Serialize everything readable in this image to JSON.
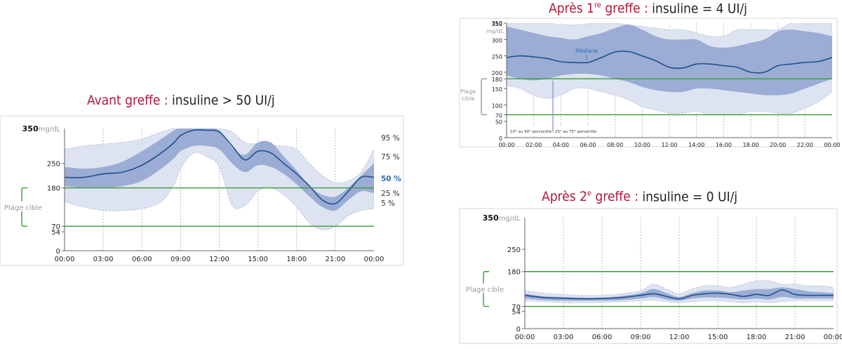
{
  "charts": [
    {
      "id": "chart-a",
      "title_red": "Avant greffe :",
      "title_rest": "insuline > 50 UI/j",
      "sup": "",
      "title_red_after": "",
      "unit": "mg/dL",
      "y_top_label": "350",
      "target_label": "Plage cible",
      "y_ticks": [
        0,
        54,
        70,
        180,
        250
      ],
      "x_ticks": [
        "00:00",
        "03:00",
        "06:00",
        "09:00",
        "12:00",
        "15:00",
        "18:00",
        "21:00",
        "00:00"
      ],
      "percentile_labels": [
        {
          "text": "95 %",
          "value": 95
        },
        {
          "text": "75 %",
          "value": 75
        },
        {
          "text": "50 %",
          "value": 50
        },
        {
          "text": "25 %",
          "value": 25
        },
        {
          "text": "5 %",
          "value": 5
        }
      ]
    },
    {
      "id": "chart-b",
      "title_red": "Après 1",
      "sup": "re",
      "title_red_after": " greffe :",
      "title_rest": "insuline = 4 UI/j",
      "unit": "mg/dL",
      "y_top_label": "350",
      "target_label": "Plage cible",
      "y_ticks": [
        0,
        50,
        70,
        100,
        150,
        180,
        200,
        250,
        300,
        350
      ],
      "x_ticks": [
        "00:00",
        "02:00",
        "04:00",
        "06:00",
        "08:00",
        "10:00",
        "12:00",
        "14:00",
        "16:00",
        "18:00",
        "20:00",
        "22:00",
        "00:00"
      ],
      "median_label": "Médiane",
      "legend_10_90": "10° au 90° percentile",
      "legend_25_75": "25° au 75° percentile"
    },
    {
      "id": "chart-c",
      "title_red": "Après 2",
      "sup": "e",
      "title_red_after": " greffe :",
      "title_rest": "insuline = 0 UI/j",
      "unit": "mg/dL",
      "y_top_label": "350",
      "target_label": "Plage cible",
      "y_ticks": [
        0,
        54,
        70,
        180,
        250
      ],
      "x_ticks": [
        "00:00",
        "03:00",
        "06:00",
        "09:00",
        "12:00",
        "15:00",
        "18:00",
        "21:00",
        "00:00"
      ]
    }
  ],
  "colors": {
    "title_accent": "#b0173a",
    "outer_band": "#dde3f0",
    "inner_band": "#9badd4",
    "median": "#1f4f8f",
    "target_line": "#3a9a3a",
    "label_blue": "#2a6db5"
  },
  "chart_data": [
    {
      "type": "area",
      "title": "Avant greffe : insuline > 50 UI/j",
      "ylabel": "mg/dL",
      "ylim": [
        0,
        350
      ],
      "xlim": [
        0,
        24
      ],
      "target_range": [
        70,
        180
      ],
      "x": [
        0,
        1.5,
        3,
        4.5,
        6,
        7.5,
        8.5,
        9,
        10,
        11,
        12,
        13,
        14,
        15,
        16,
        17,
        18,
        19,
        20,
        21,
        22,
        23,
        24
      ],
      "series": [
        {
          "name": "95 %",
          "values": [
            290,
            300,
            305,
            310,
            320,
            340,
            352,
            355,
            355,
            350,
            350,
            340,
            310,
            305,
            300,
            300,
            290,
            250,
            215,
            195,
            200,
            225,
            290
          ]
        },
        {
          "name": "75 %",
          "values": [
            240,
            235,
            240,
            255,
            285,
            320,
            345,
            355,
            355,
            350,
            345,
            295,
            275,
            310,
            310,
            270,
            230,
            185,
            160,
            155,
            180,
            215,
            250
          ]
        },
        {
          "name": "50 %",
          "values": [
            210,
            210,
            220,
            225,
            245,
            280,
            310,
            330,
            345,
            345,
            340,
            300,
            260,
            285,
            280,
            250,
            220,
            185,
            145,
            135,
            170,
            210,
            210
          ]
        },
        {
          "name": "25 %",
          "values": [
            185,
            180,
            180,
            185,
            200,
            235,
            265,
            285,
            300,
            300,
            290,
            250,
            225,
            245,
            240,
            220,
            190,
            155,
            125,
            115,
            145,
            170,
            165
          ]
        },
        {
          "name": "5 %",
          "values": [
            140,
            125,
            115,
            115,
            120,
            140,
            190,
            235,
            280,
            270,
            240,
            130,
            130,
            170,
            180,
            160,
            125,
            80,
            60,
            70,
            100,
            115,
            120
          ]
        }
      ]
    },
    {
      "type": "area",
      "title": "Après 1re greffe : insuline = 4 UI/j",
      "ylabel": "mg/dL",
      "ylim": [
        0,
        350
      ],
      "xlim": [
        0,
        24
      ],
      "target_range": [
        70,
        180
      ],
      "x": [
        0,
        1,
        2,
        3,
        4,
        5,
        6,
        7,
        8,
        9,
        10,
        11,
        12,
        13,
        14,
        15,
        16,
        17,
        18,
        19,
        20,
        21,
        22,
        23,
        24
      ],
      "series": [
        {
          "name": "90° percentile",
          "values": [
            350,
            350,
            350,
            350,
            345,
            345,
            348,
            350,
            350,
            345,
            340,
            335,
            330,
            330,
            320,
            310,
            310,
            330,
            330,
            330,
            330,
            350,
            350,
            350,
            350
          ]
        },
        {
          "name": "75° percentile",
          "values": [
            340,
            330,
            320,
            310,
            305,
            300,
            310,
            320,
            335,
            345,
            330,
            310,
            300,
            300,
            300,
            280,
            275,
            280,
            290,
            300,
            325,
            330,
            325,
            320,
            310
          ]
        },
        {
          "name": "Médiane",
          "values": [
            245,
            250,
            247,
            242,
            232,
            230,
            230,
            245,
            262,
            263,
            250,
            235,
            215,
            213,
            225,
            225,
            220,
            215,
            200,
            200,
            220,
            225,
            230,
            233,
            245
          ]
        },
        {
          "name": "25° percentile",
          "values": [
            190,
            180,
            175,
            180,
            190,
            195,
            195,
            190,
            180,
            170,
            155,
            145,
            140,
            140,
            150,
            150,
            145,
            140,
            135,
            130,
            130,
            135,
            150,
            165,
            180
          ]
        },
        {
          "name": "10° percentile",
          "values": [
            160,
            150,
            130,
            120,
            130,
            150,
            150,
            140,
            130,
            115,
            95,
            85,
            75,
            75,
            80,
            70,
            70,
            70,
            80,
            80,
            75,
            75,
            90,
            110,
            140
          ]
        }
      ]
    },
    {
      "type": "area",
      "title": "Après 2e greffe : insuline = 0 UI/j",
      "ylabel": "mg/dL",
      "ylim": [
        0,
        350
      ],
      "xlim": [
        0,
        24
      ],
      "target_range": [
        70,
        180
      ],
      "x": [
        0,
        1.5,
        3,
        4.5,
        6,
        7.5,
        9,
        10,
        11,
        12,
        13,
        14,
        15,
        16,
        17,
        18,
        19,
        20,
        21,
        22,
        23,
        24
      ],
      "series": [
        {
          "name": "95 %",
          "values": [
            120,
            112,
            108,
            105,
            105,
            110,
            120,
            140,
            125,
            110,
            125,
            135,
            135,
            130,
            140,
            150,
            150,
            140,
            140,
            135,
            135,
            130
          ]
        },
        {
          "name": "75 %",
          "values": [
            110,
            102,
            100,
            98,
            98,
            103,
            112,
            125,
            112,
            100,
            112,
            120,
            120,
            115,
            120,
            125,
            125,
            130,
            125,
            118,
            115,
            112
          ]
        },
        {
          "name": "50 %",
          "values": [
            105,
            98,
            96,
            94,
            95,
            98,
            105,
            110,
            102,
            94,
            105,
            110,
            112,
            108,
            102,
            108,
            105,
            122,
            108,
            105,
            105,
            105
          ]
        },
        {
          "name": "25 %",
          "values": [
            95,
            90,
            88,
            88,
            88,
            90,
            95,
            100,
            92,
            88,
            95,
            98,
            98,
            95,
            92,
            95,
            92,
            100,
            95,
            95,
            95,
            95
          ]
        },
        {
          "name": "5 %",
          "values": [
            88,
            85,
            82,
            82,
            83,
            85,
            88,
            90,
            85,
            82,
            85,
            88,
            88,
            85,
            82,
            85,
            82,
            85,
            88,
            88,
            88,
            88
          ]
        }
      ]
    }
  ]
}
